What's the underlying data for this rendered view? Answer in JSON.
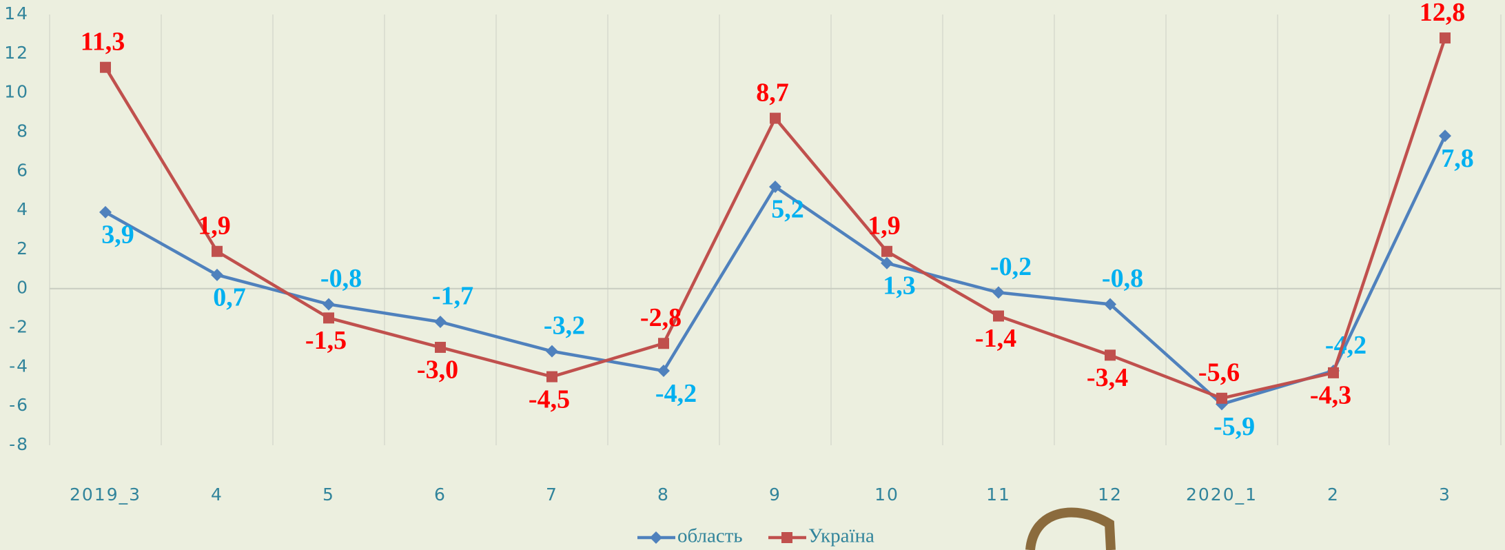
{
  "chart_data": {
    "type": "line",
    "categories": [
      "2019_3",
      "4",
      "5",
      "6",
      "7",
      "8",
      "9",
      "10",
      "11",
      "12",
      "2020_1",
      "2",
      "3"
    ],
    "series": [
      {
        "name": "область",
        "color": "#4f81bd",
        "label_color": "#00b0f0",
        "values": [
          3.9,
          0.7,
          -0.8,
          -1.7,
          -3.2,
          -4.2,
          5.2,
          1.3,
          -0.2,
          -0.8,
          -5.9,
          -4.2,
          7.8
        ],
        "value_labels": [
          "3,9",
          "0,7",
          "-0,8",
          "-1,7",
          "-3,2",
          "-4,2",
          "5,2",
          "1,3",
          "-0,2",
          "-0,8",
          "-5,9",
          "-4,2",
          "7,8"
        ]
      },
      {
        "name": "Україна",
        "color": "#c0504d",
        "label_color": "#ff0000",
        "values": [
          11.3,
          1.9,
          -1.5,
          -3.0,
          -4.5,
          -2.8,
          8.7,
          1.9,
          -1.4,
          -3.4,
          -5.6,
          -4.3,
          12.8
        ],
        "value_labels": [
          "11,3",
          "1,9",
          "-1,5",
          "-3,0",
          "-4,5",
          "-2,8",
          "8,7",
          "1,9",
          "-1,4",
          "-3,4",
          "-5,6",
          "-4,3",
          "12,8"
        ]
      }
    ],
    "ylim": [
      -8,
      14
    ],
    "yticks": [
      -8,
      -6,
      -4,
      -2,
      0,
      2,
      4,
      6,
      8,
      10,
      12,
      14
    ],
    "legend": "bottom"
  }
}
